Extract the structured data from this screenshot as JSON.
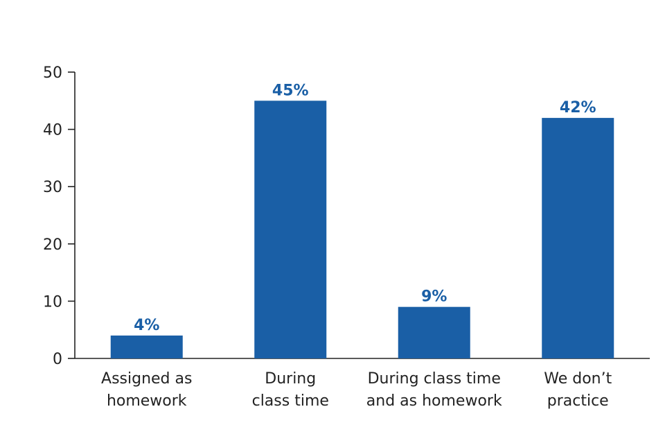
{
  "chart_data": {
    "type": "bar",
    "title": "",
    "xlabel": "",
    "ylabel": "",
    "ylim": [
      0,
      50
    ],
    "yticks": [
      0,
      10,
      20,
      30,
      40,
      50
    ],
    "grid": false,
    "bar_color": "#1a5fa6",
    "label_color": "#1a5fa6",
    "categories": [
      [
        "Assigned as",
        "homework"
      ],
      [
        "During",
        "class time"
      ],
      [
        "During class time",
        "and as homework"
      ],
      [
        "We don’t",
        "practice"
      ]
    ],
    "values": [
      4,
      45,
      9,
      42
    ],
    "data_labels": [
      "4%",
      "45%",
      "9%",
      "42%"
    ]
  }
}
